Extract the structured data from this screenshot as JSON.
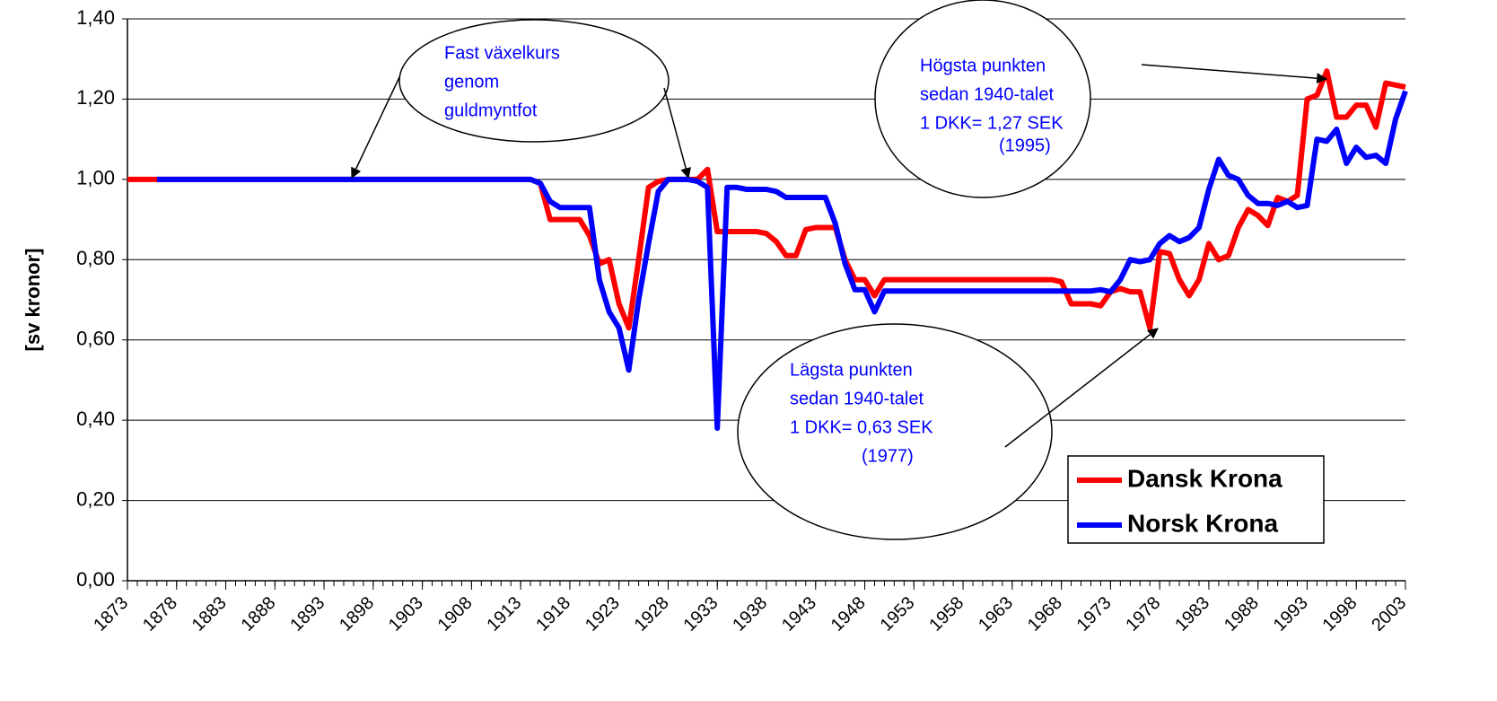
{
  "chart_data": {
    "type": "line",
    "ylabel": "[sv kronor]",
    "x": [
      1873,
      1874,
      1875,
      1876,
      1877,
      1878,
      1879,
      1880,
      1881,
      1882,
      1883,
      1884,
      1885,
      1886,
      1887,
      1888,
      1889,
      1890,
      1891,
      1892,
      1893,
      1894,
      1895,
      1896,
      1897,
      1898,
      1899,
      1900,
      1901,
      1902,
      1903,
      1904,
      1905,
      1906,
      1907,
      1908,
      1909,
      1910,
      1911,
      1912,
      1913,
      1914,
      1915,
      1916,
      1917,
      1918,
      1919,
      1920,
      1921,
      1922,
      1923,
      1924,
      1925,
      1926,
      1927,
      1928,
      1929,
      1930,
      1931,
      1932,
      1933,
      1934,
      1935,
      1936,
      1937,
      1938,
      1939,
      1940,
      1941,
      1942,
      1943,
      1944,
      1945,
      1946,
      1947,
      1948,
      1949,
      1950,
      1951,
      1952,
      1953,
      1954,
      1955,
      1956,
      1957,
      1958,
      1959,
      1960,
      1961,
      1962,
      1963,
      1964,
      1965,
      1966,
      1967,
      1968,
      1969,
      1970,
      1971,
      1972,
      1973,
      1974,
      1975,
      1976,
      1977,
      1978,
      1979,
      1980,
      1981,
      1982,
      1983,
      1984,
      1985,
      1986,
      1987,
      1988,
      1989,
      1990,
      1991,
      1992,
      1993,
      1994,
      1995,
      1996,
      1997,
      1998,
      1999,
      2000,
      2001,
      2002,
      2003
    ],
    "series": [
      {
        "name": "Dansk Krona",
        "color": "#ff0000",
        "values": [
          1,
          1,
          1,
          1,
          1,
          1,
          1,
          1,
          1,
          1,
          1,
          1,
          1,
          1,
          1,
          1,
          1,
          1,
          1,
          1,
          1,
          1,
          1,
          1,
          1,
          1,
          1,
          1,
          1,
          1,
          1,
          1,
          1,
          1,
          1,
          1,
          1,
          1,
          1,
          1,
          1,
          1,
          0.99,
          0.9,
          0.9,
          0.9,
          0.9,
          0.86,
          0.79,
          0.8,
          0.69,
          0.63,
          0.8,
          0.98,
          0.995,
          1,
          1,
          1,
          1,
          1.025,
          0.87,
          0.87,
          0.87,
          0.87,
          0.87,
          0.865,
          0.845,
          0.81,
          0.81,
          0.875,
          0.88,
          0.88,
          0.88,
          0.8,
          0.75,
          0.75,
          0.71,
          0.75,
          0.75,
          0.75,
          0.75,
          0.75,
          0.75,
          0.75,
          0.75,
          0.75,
          0.75,
          0.75,
          0.75,
          0.75,
          0.75,
          0.75,
          0.75,
          0.75,
          0.75,
          0.745,
          0.69,
          0.69,
          0.69,
          0.685,
          0.72,
          0.728,
          0.72,
          0.72,
          0.63,
          0.82,
          0.815,
          0.75,
          0.71,
          0.75,
          0.84,
          0.8,
          0.81,
          0.88,
          0.925,
          0.91,
          0.885,
          0.955,
          0.945,
          0.96,
          1.2,
          1.21,
          1.27,
          1.155,
          1.155,
          1.185,
          1.185,
          1.13,
          1.24,
          1.235,
          1.23
        ]
      },
      {
        "name": "Norsk Krona",
        "color": "#0000ff",
        "values": [
          null,
          null,
          null,
          1,
          1,
          1,
          1,
          1,
          1,
          1,
          1,
          1,
          1,
          1,
          1,
          1,
          1,
          1,
          1,
          1,
          1,
          1,
          1,
          1,
          1,
          1,
          1,
          1,
          1,
          1,
          1,
          1,
          1,
          1,
          1,
          1,
          1,
          1,
          1,
          1,
          1,
          1,
          0.99,
          0.945,
          0.93,
          0.93,
          0.93,
          0.93,
          0.75,
          0.67,
          0.63,
          0.525,
          0.7,
          0.84,
          0.97,
          1,
          1,
          1,
          0.995,
          0.98,
          0.38,
          0.98,
          0.98,
          0.975,
          0.975,
          0.975,
          0.97,
          0.955,
          0.955,
          0.955,
          0.955,
          0.955,
          0.89,
          0.79,
          0.725,
          0.725,
          0.67,
          0.722,
          0.722,
          0.722,
          0.722,
          0.722,
          0.722,
          0.722,
          0.722,
          0.722,
          0.722,
          0.722,
          0.722,
          0.722,
          0.722,
          0.722,
          0.722,
          0.722,
          0.722,
          0.722,
          0.722,
          0.722,
          0.722,
          0.725,
          0.72,
          0.75,
          0.8,
          0.795,
          0.8,
          0.84,
          0.86,
          0.845,
          0.855,
          0.88,
          0.975,
          1.05,
          1.01,
          1.0,
          0.96,
          0.94,
          0.94,
          0.935,
          0.945,
          0.93,
          0.935,
          1.1,
          1.095,
          1.125,
          1.04,
          1.08,
          1.055,
          1.06,
          1.04,
          1.15,
          1.22
        ]
      }
    ],
    "xlim": [
      1873,
      2003
    ],
    "xticks": [
      1873,
      1878,
      1883,
      1888,
      1893,
      1898,
      1903,
      1908,
      1913,
      1918,
      1923,
      1928,
      1933,
      1938,
      1943,
      1948,
      1953,
      1958,
      1963,
      1968,
      1973,
      1978,
      1983,
      1988,
      1993,
      1998,
      2003
    ],
    "ylim": [
      0,
      1.4
    ],
    "yticks": [
      {
        "value": 0,
        "label": "0,00"
      },
      {
        "value": 0.2,
        "label": "0,20"
      },
      {
        "value": 0.4,
        "label": "0,40"
      },
      {
        "value": 0.6,
        "label": "0,60"
      },
      {
        "value": 0.8,
        "label": "0,80"
      },
      {
        "value": 1,
        "label": "1,00"
      },
      {
        "value": 1.2,
        "label": "1,20"
      },
      {
        "value": 1.4,
        "label": "1,40"
      }
    ],
    "grid": true,
    "legend": "lower right",
    "annotations": [
      {
        "lines": [
          "Fast växelkurs",
          "genom",
          "guldmyntfot"
        ]
      },
      {
        "lines": [
          "Högsta punkten",
          "sedan 1940-talet",
          "1 DKK= 1,27 SEK",
          "(1995)"
        ]
      },
      {
        "lines": [
          "Lägsta punkten",
          "sedan 1940-talet",
          "1 DKK= 0,63 SEK",
          "(1977)"
        ]
      }
    ]
  }
}
